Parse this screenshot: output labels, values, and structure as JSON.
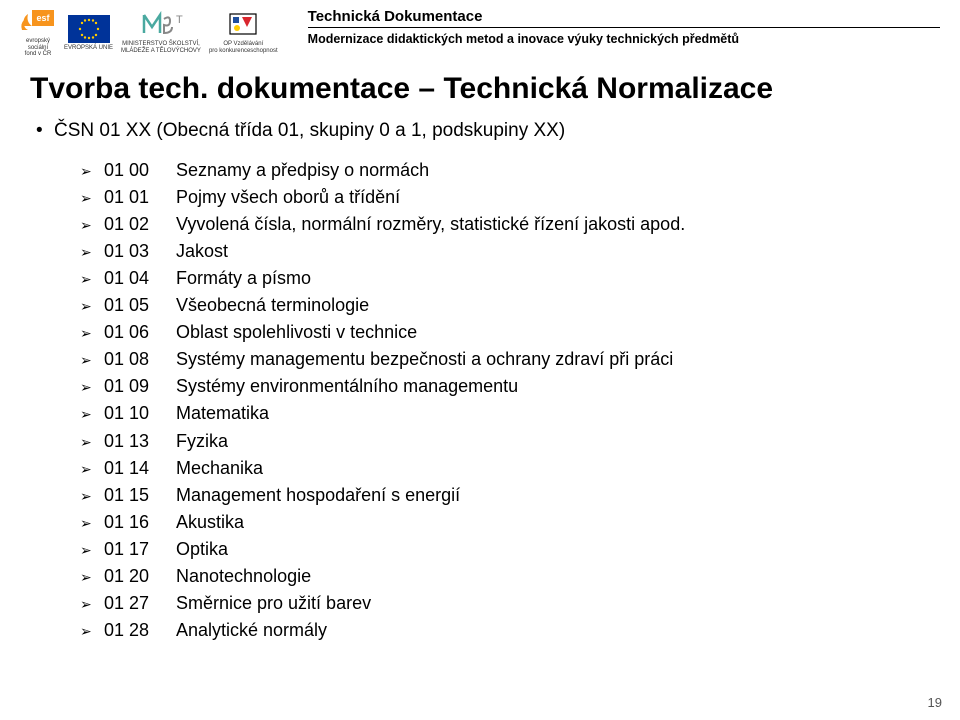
{
  "header": {
    "logos": {
      "esf_caption1": "evropský",
      "esf_caption2": "sociální",
      "esf_caption3": "fond v ČR",
      "eu_caption": "EVROPSKÁ UNIE",
      "msmt_caption1": "MINISTERSTVO ŠKOLSTVÍ,",
      "msmt_caption2": "MLÁDEŽE A TĚLOVÝCHOVY",
      "op_caption1": "OP Vzdělávání",
      "op_caption2": "pro konkurenceschopnost"
    },
    "title": "Technická Dokumentace",
    "subtitle": "Modernizace didaktických metod a inovace výuky technických předmětů"
  },
  "main_title": "Tvorba tech. dokumentace – Technická Normalizace",
  "bullet_text": "ČSN 01 XX (Obecná třída 01, skupiny 0 a 1, podskupiny XX)",
  "items": [
    {
      "code": "01 00",
      "desc": "Seznamy a předpisy o normách"
    },
    {
      "code": "01 01",
      "desc": "Pojmy všech oborů a třídění"
    },
    {
      "code": "01 02",
      "desc": "Vyvolená čísla, normální rozměry, statistické řízení jakosti apod."
    },
    {
      "code": "01 03",
      "desc": "Jakost"
    },
    {
      "code": "01 04",
      "desc": "Formáty a písmo"
    },
    {
      "code": "01 05",
      "desc": "Všeobecná terminologie"
    },
    {
      "code": "01 06",
      "desc": "Oblast spolehlivosti v technice"
    },
    {
      "code": "01 08",
      "desc": "Systémy managementu bezpečnosti a ochrany zdraví při práci"
    },
    {
      "code": "01 09",
      "desc": "Systémy environmentálního managementu"
    },
    {
      "code": "01 10",
      "desc": "Matematika"
    },
    {
      "code": "01 13",
      "desc": "Fyzika"
    },
    {
      "code": "01 14",
      "desc": "Mechanika"
    },
    {
      "code": "01 15",
      "desc": "Management hospodaření s energií"
    },
    {
      "code": "01 16",
      "desc": "Akustika"
    },
    {
      "code": "01 17",
      "desc": "Optika"
    },
    {
      "code": "01 20",
      "desc": "Nanotechnologie"
    },
    {
      "code": "01 27",
      "desc": "Směrnice pro užití barev"
    },
    {
      "code": "01 28",
      "desc": "Analytické normály"
    }
  ],
  "page_number": "19",
  "colors": {
    "esf_orange": "#f7941d",
    "eu_blue": "#003399",
    "eu_star": "#ffcc00",
    "msmt_teal": "#4aa9a0",
    "op_red": "#d9262e",
    "op_blue": "#1f4e9c"
  }
}
